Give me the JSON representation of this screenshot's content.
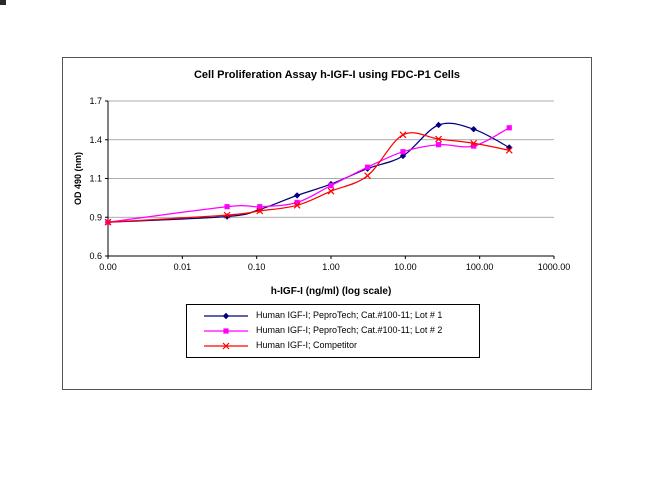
{
  "page": {
    "background": "#ffffff"
  },
  "chart_data": {
    "type": "line",
    "title": "Cell Proliferation Assay h-IGF-I using FDC-P1 Cells",
    "xlabel": "h-IGF-I (ng/ml) (log scale)",
    "ylabel": "OD 490 (nm)",
    "x_scale": "log",
    "xlim_log10": [
      -3,
      3
    ],
    "ylim": [
      0.6,
      1.7
    ],
    "x_tick_labels": [
      "0.00",
      "0.01",
      "0.10",
      "1.00",
      "10.00",
      "100.00",
      "1000.00"
    ],
    "y_tick_labels": [
      "0.6",
      "0.9",
      "1.1",
      "1.4",
      "1.7"
    ],
    "grid": "horizontal",
    "gridline_color": "#909090",
    "axis_color": "#000000",
    "legend_position": "bottom",
    "x": [
      0.001,
      0.04,
      0.11,
      0.35,
      1.0,
      3.1,
      9.3,
      28,
      83,
      250
    ],
    "series": [
      {
        "name": "Human IGF-I; PeproTech; Cat.#100-11; Lot # 1",
        "color": "#000080",
        "marker": "diamond",
        "values": [
          0.84,
          0.88,
          0.93,
          1.03,
          1.11,
          1.22,
          1.31,
          1.53,
          1.5,
          1.37
        ]
      },
      {
        "name": "Human IGF-I; PeproTech; Cat.#100-11; Lot # 2",
        "color": "#FF00FF",
        "marker": "square",
        "values": [
          0.84,
          0.95,
          0.95,
          0.98,
          1.1,
          1.23,
          1.34,
          1.39,
          1.38,
          1.51
        ]
      },
      {
        "name": "Human IGF-I; Competitor",
        "color": "#FF0000",
        "marker": "x",
        "values": [
          0.84,
          0.89,
          0.92,
          0.96,
          1.06,
          1.17,
          1.46,
          1.43,
          1.4,
          1.35
        ]
      }
    ]
  }
}
